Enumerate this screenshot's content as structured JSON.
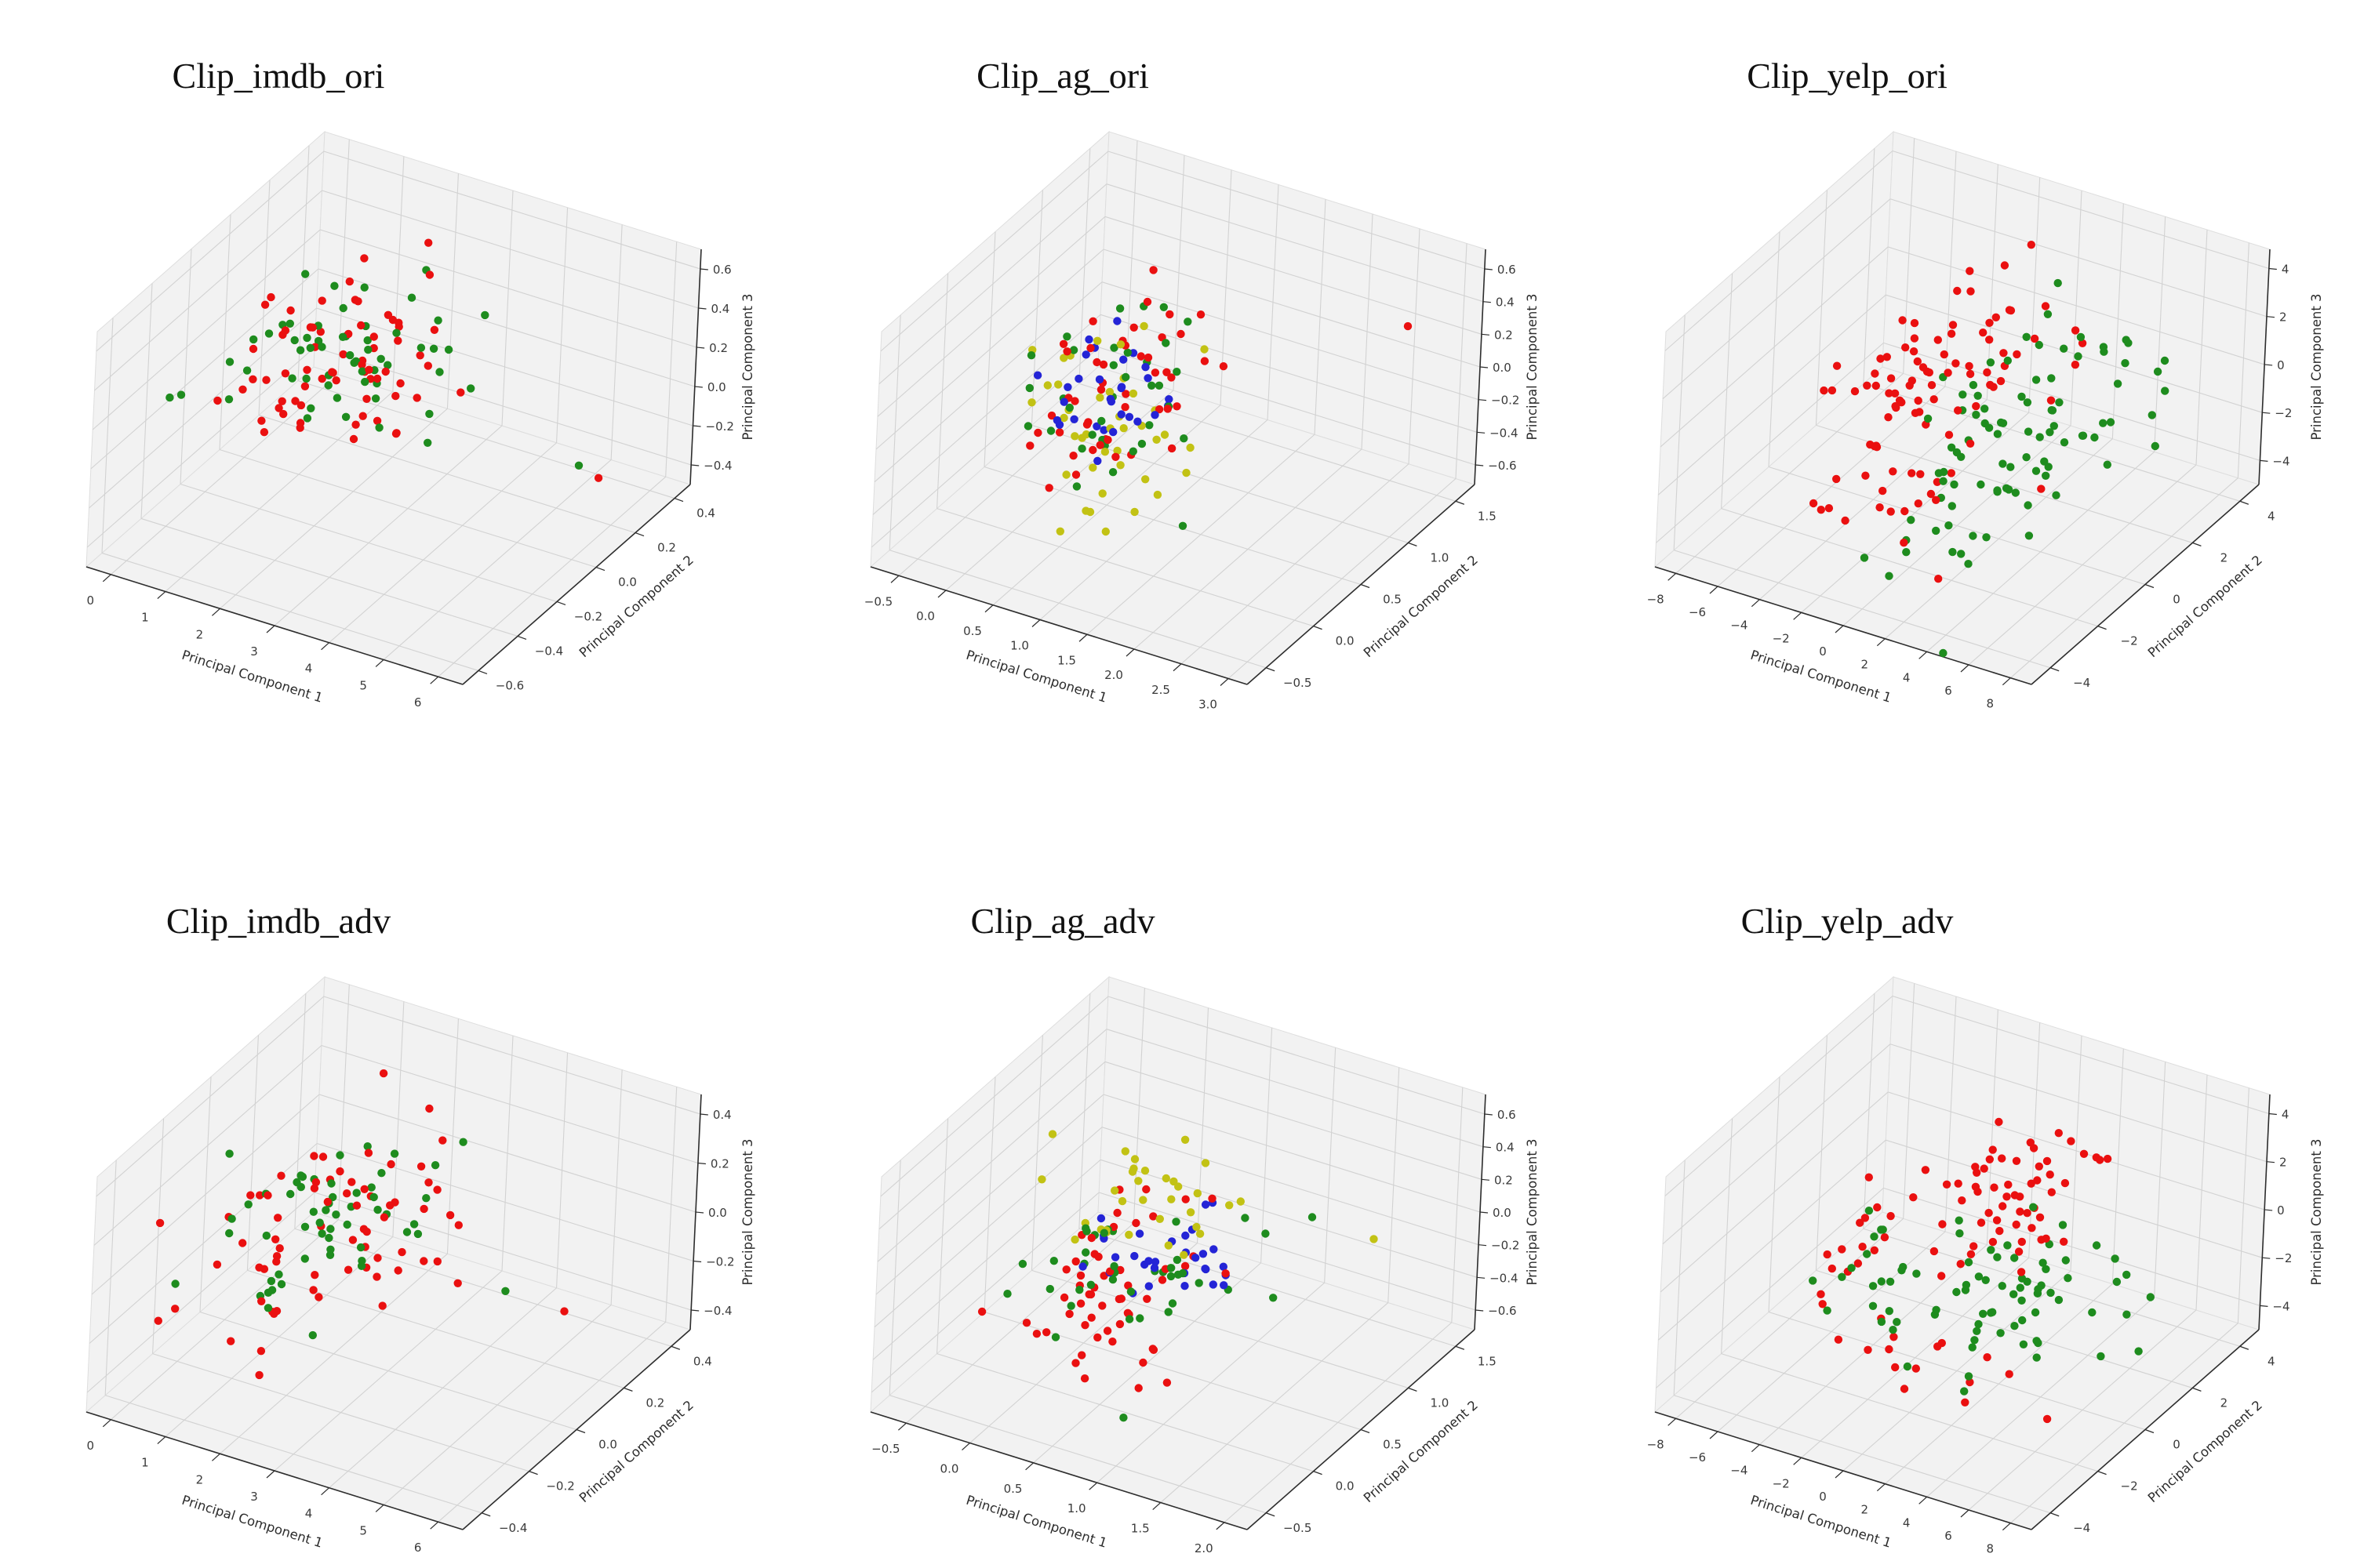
{
  "figure": {
    "background": "#ffffff",
    "pane_color": "#f2f2f2",
    "pane_edge_color": "#dedede",
    "grid_color": "#d2d2d2",
    "axis_line_color": "#2d2d2d",
    "marker_size": 5.2
  },
  "palette": {
    "red": "#ea1010",
    "green": "#1e8c1e",
    "blue": "#2424d6",
    "yellow": "#c2c214"
  },
  "chart_data": [
    {
      "title": "Clip_imdb_ori",
      "type": "scatter",
      "xlabel": "Principal Component 1",
      "ylabel": "Principal Component 2",
      "zlabel": "Principal Component 3",
      "grid": true,
      "xlim": [
        -0.45,
        6.45
      ],
      "ylim": [
        -0.68,
        0.48
      ],
      "zlim": [
        -0.5,
        0.7
      ],
      "xticks": {
        "values": [
          0,
          1,
          2,
          3,
          4,
          5,
          6
        ],
        "labels": [
          "0",
          "1",
          "2",
          "3",
          "4",
          "5",
          "6"
        ]
      },
      "yticks": {
        "values": [
          -0.6,
          -0.4,
          -0.2,
          0.0,
          0.2,
          0.4
        ],
        "labels": [
          "−0.6",
          "−0.4",
          "−0.2",
          "0.0",
          "0.2",
          "0.4"
        ]
      },
      "zticks": {
        "values": [
          -0.4,
          -0.2,
          0.0,
          0.2,
          0.4,
          0.6
        ],
        "labels": [
          "−0.4",
          "−0.2",
          "0.0",
          "0.2",
          "0.4",
          "0.6"
        ]
      },
      "series": [
        {
          "name": "red",
          "color": "red",
          "clusters": [
            {
              "n": 62,
              "center": [
                1.9,
                0.05,
                0.16
              ],
              "spread": [
                0.85,
                0.17,
                0.14
              ]
            },
            {
              "n": 6,
              "center": [
                0.9,
                -0.1,
                -0.05
              ],
              "spread": [
                0.5,
                0.12,
                0.1
              ]
            }
          ],
          "outliers": [
            [
              5.4,
              0.3,
              -0.4
            ]
          ]
        },
        {
          "name": "green",
          "color": "green",
          "clusters": [
            {
              "n": 55,
              "center": [
                1.6,
                0.03,
                0.12
              ],
              "spread": [
                0.8,
                0.16,
                0.13
              ]
            }
          ],
          "outliers": [
            [
              5.0,
              0.31,
              -0.38
            ],
            [
              0.15,
              -0.05,
              0.0
            ]
          ]
        }
      ]
    },
    {
      "title": "Clip_ag_ori",
      "type": "scatter",
      "xlabel": "Principal Component 1",
      "ylabel": "Principal Component 2",
      "zlabel": "Principal Component 3",
      "grid": true,
      "xlim": [
        -0.8,
        3.2
      ],
      "ylim": [
        -0.7,
        1.7
      ],
      "zlim": [
        -0.72,
        0.72
      ],
      "xticks": {
        "values": [
          -0.5,
          0.0,
          0.5,
          1.0,
          1.5,
          2.0,
          2.5,
          3.0
        ],
        "labels": [
          "−0.5",
          "0.0",
          "0.5",
          "1.0",
          "1.5",
          "2.0",
          "2.5",
          "3.0"
        ]
      },
      "yticks": {
        "values": [
          -0.5,
          0.0,
          0.5,
          1.0,
          1.5
        ],
        "labels": [
          "−0.5",
          "0.0",
          "0.5",
          "1.0",
          "1.5"
        ]
      },
      "zticks": {
        "values": [
          -0.6,
          -0.4,
          -0.2,
          0.0,
          0.2,
          0.4,
          0.6
        ],
        "labels": [
          "−0.6",
          "−0.4",
          "−0.2",
          "0.0",
          "0.2",
          "0.4",
          "0.6"
        ]
      },
      "series": [
        {
          "name": "red",
          "color": "red",
          "clusters": [
            {
              "n": 46,
              "center": [
                0.55,
                0.45,
                0.05
              ],
              "spread": [
                0.32,
                0.3,
                0.22
              ]
            }
          ],
          "outliers": [
            [
              2.9,
              1.2,
              0.45
            ],
            [
              1.05,
              0.65,
              0.35
            ]
          ]
        },
        {
          "name": "green",
          "color": "green",
          "clusters": [
            {
              "n": 34,
              "center": [
                0.6,
                0.4,
                0.0
              ],
              "spread": [
                0.35,
                0.28,
                0.22
              ]
            }
          ],
          "outliers": [
            [
              1.45,
              0.35,
              -0.6
            ]
          ]
        },
        {
          "name": "blue",
          "color": "blue",
          "clusters": [
            {
              "n": 30,
              "center": [
                0.6,
                0.45,
                0.0
              ],
              "spread": [
                0.3,
                0.25,
                0.2
              ]
            }
          ],
          "outliers": []
        },
        {
          "name": "yellow",
          "color": "yellow",
          "clusters": [
            {
              "n": 34,
              "center": [
                0.55,
                0.4,
                -0.05
              ],
              "spread": [
                0.35,
                0.3,
                0.25
              ]
            },
            {
              "n": 6,
              "center": [
                0.85,
                0.25,
                -0.5
              ],
              "spread": [
                0.3,
                0.2,
                0.08
              ]
            }
          ],
          "outliers": [
            [
              1.3,
              0.55,
              -0.25
            ]
          ]
        }
      ]
    },
    {
      "title": "Clip_yelp_ori",
      "type": "scatter",
      "xlabel": "Principal Component 1",
      "ylabel": "Principal Component 2",
      "zlabel": "Principal Component 3",
      "grid": true,
      "xlim": [
        -9,
        9
      ],
      "ylim": [
        -4.8,
        4.8
      ],
      "zlim": [
        -5,
        4.8
      ],
      "xticks": {
        "values": [
          -8,
          -6,
          -4,
          -2,
          0,
          2,
          4,
          6,
          8
        ],
        "labels": [
          "−8",
          "−6",
          "−4",
          "−2",
          "0",
          "2",
          "4",
          "6",
          "8"
        ]
      },
      "yticks": {
        "values": [
          -4,
          -2,
          0,
          2,
          4
        ],
        "labels": [
          "−4",
          "−2",
          "0",
          "2",
          "4"
        ]
      },
      "zticks": {
        "values": [
          -4,
          -2,
          0,
          2,
          4
        ],
        "labels": [
          "−4",
          "−2",
          "0",
          "2",
          "4"
        ]
      },
      "series": [
        {
          "name": "red",
          "color": "red",
          "clusters": [
            {
              "n": 45,
              "center": [
                -3,
                0.5,
                -1
              ],
              "spread": [
                2.2,
                1.8,
                1.6
              ]
            },
            {
              "n": 35,
              "center": [
                0,
                0.5,
                1.5
              ],
              "spread": [
                2,
                1.6,
                1.4
              ]
            },
            {
              "n": 15,
              "center": [
                -1,
                -2,
                -3
              ],
              "spread": [
                2,
                1.2,
                0.8
              ]
            }
          ],
          "outliers": []
        },
        {
          "name": "green",
          "color": "green",
          "clusters": [
            {
              "n": 55,
              "center": [
                3,
                0,
                0.5
              ],
              "spread": [
                2,
                1.7,
                1.7
              ]
            },
            {
              "n": 25,
              "center": [
                2,
                -1.5,
                -2.5
              ],
              "spread": [
                2.2,
                1.4,
                1
              ]
            },
            {
              "n": 10,
              "center": [
                5.5,
                2,
                1.5
              ],
              "spread": [
                1.4,
                1,
                1.2
              ]
            }
          ],
          "outliers": []
        }
      ]
    },
    {
      "title": "Clip_imdb_adv",
      "type": "scatter",
      "xlabel": "Principal Component 1",
      "ylabel": "Principal Component 2",
      "zlabel": "Principal Component 3",
      "grid": true,
      "xlim": [
        -0.45,
        6.45
      ],
      "ylim": [
        -0.48,
        0.48
      ],
      "zlim": [
        -0.48,
        0.48
      ],
      "xticks": {
        "values": [
          0,
          1,
          2,
          3,
          4,
          5,
          6
        ],
        "labels": [
          "0",
          "1",
          "2",
          "3",
          "4",
          "5",
          "6"
        ]
      },
      "yticks": {
        "values": [
          -0.4,
          -0.2,
          0.0,
          0.2,
          0.4
        ],
        "labels": [
          "−0.4",
          "−0.2",
          "0.0",
          "0.2",
          "0.4"
        ]
      },
      "zticks": {
        "values": [
          -0.4,
          -0.2,
          0.0,
          0.2,
          0.4
        ],
        "labels": [
          "−0.4",
          "−0.2",
          "0.0",
          "0.2",
          "0.4"
        ]
      },
      "series": [
        {
          "name": "red",
          "color": "red",
          "clusters": [
            {
              "n": 60,
              "center": [
                1.9,
                0.03,
                0.02
              ],
              "spread": [
                0.85,
                0.16,
                0.15
              ]
            },
            {
              "n": 8,
              "center": [
                1.1,
                -0.12,
                -0.22
              ],
              "spread": [
                0.5,
                0.1,
                0.1
              ]
            }
          ],
          "outliers": [
            [
              4.9,
              0.3,
              -0.36
            ]
          ]
        },
        {
          "name": "green",
          "color": "green",
          "clusters": [
            {
              "n": 55,
              "center": [
                1.6,
                0.04,
                0.04
              ],
              "spread": [
                0.8,
                0.15,
                0.14
              ]
            }
          ],
          "outliers": [
            [
              3.9,
              0.28,
              -0.33
            ]
          ]
        }
      ]
    },
    {
      "title": "Clip_ag_adv",
      "type": "scatter",
      "xlabel": "Principal Component 1",
      "ylabel": "Principal Component 2",
      "zlabel": "Principal Component 3",
      "grid": true,
      "xlim": [
        -0.78,
        2.18
      ],
      "ylim": [
        -0.7,
        1.7
      ],
      "zlim": [
        -0.72,
        0.72
      ],
      "xticks": {
        "values": [
          -0.5,
          0.0,
          0.5,
          1.0,
          1.5,
          2.0
        ],
        "labels": [
          "−0.5",
          "0.0",
          "0.5",
          "1.0",
          "1.5",
          "2.0"
        ]
      },
      "yticks": {
        "values": [
          -0.5,
          0.0,
          0.5,
          1.0,
          1.5
        ],
        "labels": [
          "−0.5",
          "0.0",
          "0.5",
          "1.0",
          "1.5"
        ]
      },
      "zticks": {
        "values": [
          -0.6,
          -0.4,
          -0.2,
          0.0,
          0.2,
          0.4,
          0.6
        ],
        "labels": [
          "−0.6",
          "−0.4",
          "−0.2",
          "0.0",
          "0.2",
          "0.4",
          "0.6"
        ]
      },
      "series": [
        {
          "name": "red",
          "color": "red",
          "clusters": [
            {
              "n": 45,
              "center": [
                0.4,
                0.25,
                -0.12
              ],
              "spread": [
                0.3,
                0.28,
                0.2
              ]
            },
            {
              "n": 10,
              "center": [
                0.35,
                0.0,
                -0.42
              ],
              "spread": [
                0.28,
                0.15,
                0.1
              ]
            }
          ],
          "outliers": []
        },
        {
          "name": "green",
          "color": "green",
          "clusters": [
            {
              "n": 38,
              "center": [
                0.6,
                0.3,
                -0.05
              ],
              "spread": [
                0.4,
                0.3,
                0.18
              ]
            }
          ],
          "outliers": [
            [
              1.55,
              0.75,
              0.3
            ],
            [
              0.9,
              -0.3,
              -0.55
            ]
          ]
        },
        {
          "name": "blue",
          "color": "blue",
          "clusters": [
            {
              "n": 30,
              "center": [
                0.62,
                0.45,
                0.02
              ],
              "spread": [
                0.22,
                0.18,
                0.1
              ]
            }
          ],
          "outliers": [
            [
              0.75,
              0.5,
              0.12
            ]
          ]
        },
        {
          "name": "yellow",
          "color": "yellow",
          "clusters": [
            {
              "n": 32,
              "center": [
                0.5,
                0.55,
                0.3
              ],
              "spread": [
                0.33,
                0.25,
                0.13
              ]
            }
          ],
          "outliers": [
            [
              2.0,
              0.8,
              0.25
            ]
          ]
        }
      ]
    },
    {
      "title": "Clip_yelp_adv",
      "type": "scatter",
      "xlabel": "Principal Component 1",
      "ylabel": "Principal Component 2",
      "zlabel": "Principal Component 3",
      "grid": true,
      "xlim": [
        -9,
        9
      ],
      "ylim": [
        -4.8,
        4.8
      ],
      "zlim": [
        -5,
        4.8
      ],
      "xticks": {
        "values": [
          -8,
          -6,
          -4,
          -2,
          0,
          2,
          4,
          6,
          8
        ],
        "labels": [
          "−8",
          "−6",
          "−4",
          "−2",
          "0",
          "2",
          "4",
          "6",
          "8"
        ]
      },
      "yticks": {
        "values": [
          -4,
          -2,
          0,
          2,
          4
        ],
        "labels": [
          "−4",
          "−2",
          "0",
          "2",
          "4"
        ]
      },
      "zticks": {
        "values": [
          -4,
          -2,
          0,
          2,
          4
        ],
        "labels": [
          "−4",
          "−2",
          "0",
          "2",
          "4"
        ]
      },
      "series": [
        {
          "name": "red",
          "color": "red",
          "clusters": [
            {
              "n": 60,
              "center": [
                0.8,
                0.8,
                1.8
              ],
              "spread": [
                1.6,
                1.4,
                1.1
              ]
            },
            {
              "n": 14,
              "center": [
                -4.5,
                -0.5,
                -1
              ],
              "spread": [
                0.9,
                1,
                0.7
              ]
            },
            {
              "n": 14,
              "center": [
                -1,
                -1.5,
                -3.2
              ],
              "spread": [
                2,
                1.2,
                0.6
              ]
            }
          ],
          "outliers": [
            [
              6.5,
              -2,
              -3.5
            ]
          ]
        },
        {
          "name": "green",
          "color": "green",
          "clusters": [
            {
              "n": 55,
              "center": [
                3,
                -0.5,
                -0.8
              ],
              "spread": [
                1.9,
                1.5,
                1.4
              ]
            },
            {
              "n": 16,
              "center": [
                -4,
                -1,
                -1.6
              ],
              "spread": [
                1.1,
                1,
                0.7
              ]
            },
            {
              "n": 8,
              "center": [
                4,
                2,
                -3.3
              ],
              "spread": [
                1.5,
                1,
                0.5
              ]
            }
          ],
          "outliers": []
        }
      ]
    }
  ]
}
